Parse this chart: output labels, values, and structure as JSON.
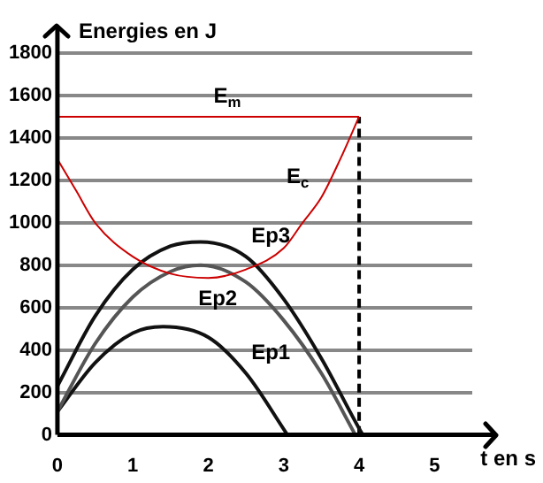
{
  "chart_data": {
    "type": "line",
    "xlabel": "t en s",
    "ylabel": "Energies en J",
    "xlim": [
      0,
      5.5
    ],
    "xticks": [
      0,
      1,
      2,
      3,
      4,
      5
    ],
    "ylim": [
      0,
      1800
    ],
    "yticks": [
      0,
      200,
      400,
      600,
      800,
      1000,
      1200,
      1400,
      1600,
      1800
    ],
    "grid": "y",
    "legend": false,
    "marker": "none",
    "series": [
      {
        "color": "#cc0000",
        "x": [
          0,
          4
        ],
        "values": [
          1500,
          1500
        ]
      },
      {
        "color": "#cc0000",
        "x": [
          0,
          0.25,
          0.5,
          1,
          1.5,
          2,
          2.5,
          3,
          3.25,
          3.5,
          3.75,
          4
        ],
        "values": [
          1300,
          1150,
          1000,
          840,
          760,
          740,
          780,
          880,
          1000,
          1120,
          1300,
          1500
        ]
      },
      {
        "color": "#111111",
        "x": [
          0,
          0.5,
          1,
          1.5,
          1.9,
          2.5,
          3,
          3.5,
          4,
          4.05
        ],
        "values": [
          230,
          560,
          780,
          890,
          910,
          840,
          640,
          360,
          30,
          0
        ]
      },
      {
        "color": "#555555",
        "x": [
          0,
          0.5,
          1,
          1.5,
          1.9,
          2.5,
          3,
          3.5,
          3.95
        ],
        "values": [
          110,
          430,
          650,
          770,
          800,
          720,
          540,
          290,
          0
        ]
      },
      {
        "color": "#111111",
        "x": [
          0,
          0.5,
          1,
          1.4,
          2,
          2.5,
          3.05
        ],
        "values": [
          110,
          340,
          480,
          510,
          460,
          290,
          0
        ]
      },
      {
        "color": "#000000",
        "line_style": "dashed",
        "x": [
          4,
          4
        ],
        "values": [
          0,
          1500
        ]
      }
    ],
    "annotations": [
      {
        "text": "E$_{m}$",
        "x": 2,
        "y": 1500
      },
      {
        "text": "E$_{c}$",
        "x": 3.5,
        "y": 1120
      },
      {
        "text": "Ep3",
        "x": 2.5,
        "y": 840
      },
      {
        "text": "Ep2",
        "x": 2.5,
        "y": 720
      },
      {
        "text": "Ep1",
        "x": 2.5,
        "y": 290
      }
    ]
  }
}
